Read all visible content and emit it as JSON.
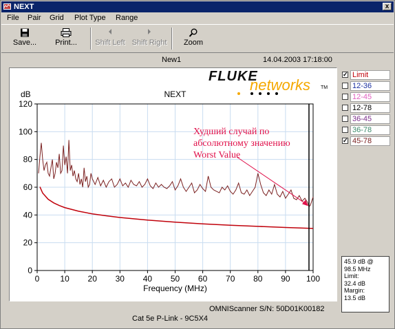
{
  "window": {
    "title": "NEXT",
    "close_label": "x"
  },
  "menu": {
    "items": [
      "File",
      "Pair",
      "Grid",
      "Plot Type",
      "Range"
    ]
  },
  "toolbar": {
    "save": "Save...",
    "print": "Print...",
    "shift_left": "Shift Left",
    "shift_right": "Shift Right",
    "zoom": "Zoom"
  },
  "header": {
    "graph_name": "New1",
    "timestamp": "14.04.2003 17:18:00"
  },
  "logo": {
    "brand": "FLUKE",
    "sub": "networks",
    "tm": "TM"
  },
  "annotation": {
    "lines": [
      "Худший случай по",
      "абсолютному значению",
      "Worst Value"
    ]
  },
  "legend": [
    {
      "label": "Limit",
      "checked": true,
      "color": "#c0000a"
    },
    {
      "label": "12-36",
      "checked": false,
      "color": "#1a2fa0"
    },
    {
      "label": "12-45",
      "checked": false,
      "color": "#e060c0"
    },
    {
      "label": "12-78",
      "checked": false,
      "color": "#000000"
    },
    {
      "label": "36-45",
      "checked": false,
      "color": "#7a2d8a"
    },
    {
      "label": "36-78",
      "checked": false,
      "color": "#3a8a6a"
    },
    {
      "label": "45-78",
      "checked": true,
      "color": "#7a2020"
    }
  ],
  "info": {
    "lines": [
      "45.9 dB @",
      "98.5 MHz",
      "Limit:",
      "32.4 dB",
      "Margin:",
      "13.5 dB"
    ]
  },
  "footer": {
    "scanner": "OMNIScanner  S/N:  50D01K00182",
    "cable": "Cat 5e P-Link - 9C5X4"
  },
  "chart_data": {
    "type": "line",
    "title": "NEXT",
    "xlabel": "Frequency (MHz)",
    "ylabel": "dB",
    "xlim": [
      0,
      100
    ],
    "ylim": [
      0,
      120
    ],
    "xticks": [
      0,
      10,
      20,
      30,
      40,
      50,
      60,
      70,
      80,
      90,
      100
    ],
    "yticks": [
      0,
      20,
      40,
      60,
      80,
      100,
      120
    ],
    "grid": true,
    "marker_x": 98.5,
    "series": [
      {
        "name": "Limit",
        "color": "#c0000a",
        "x": [
          1,
          2,
          4,
          6,
          8,
          10,
          15,
          20,
          25,
          30,
          40,
          50,
          60,
          70,
          80,
          90,
          100
        ],
        "y": [
          60.3,
          55.8,
          51.3,
          48.7,
          46.8,
          45.3,
          42.7,
          40.8,
          39.4,
          38.2,
          36.3,
          34.8,
          33.6,
          32.6,
          31.8,
          31.0,
          30.3
        ]
      },
      {
        "name": "45-78",
        "color": "#7a2020",
        "x": [
          0.5,
          1,
          1.5,
          2,
          2.5,
          3,
          3.5,
          4,
          4.5,
          5,
          5.5,
          6,
          6.5,
          7,
          7.5,
          8,
          8.5,
          9,
          9.5,
          10,
          10.5,
          11,
          11.5,
          12,
          12.5,
          13,
          13.5,
          14,
          14.5,
          15,
          15.5,
          16,
          16.5,
          17,
          17.5,
          18,
          18.5,
          19,
          19.5,
          20,
          21,
          22,
          23,
          24,
          25,
          26,
          27,
          28,
          29,
          30,
          31,
          32,
          33,
          34,
          35,
          36,
          37,
          38,
          39,
          40,
          41,
          42,
          43,
          44,
          45,
          46,
          47,
          48,
          49,
          50,
          51,
          52,
          53,
          54,
          55,
          56,
          57,
          58,
          59,
          60,
          61,
          62,
          63,
          64,
          65,
          66,
          67,
          68,
          69,
          70,
          71,
          72,
          73,
          74,
          75,
          76,
          77,
          78,
          79,
          80,
          81,
          82,
          83,
          84,
          85,
          86,
          87,
          88,
          89,
          90,
          91,
          92,
          93,
          94,
          95,
          96,
          97,
          98,
          98.5,
          99,
          99.5,
          100
        ],
        "y": [
          70,
          82,
          92,
          80,
          72,
          76,
          78,
          70,
          68,
          74,
          80,
          66,
          70,
          78,
          74,
          84,
          70,
          72,
          90,
          76,
          82,
          70,
          94,
          72,
          76,
          68,
          72,
          66,
          64,
          70,
          62,
          66,
          60,
          74,
          64,
          68,
          60,
          62,
          70,
          66,
          62,
          67,
          61,
          65,
          60,
          64,
          66,
          60,
          62,
          66,
          61,
          63,
          60,
          65,
          62,
          61,
          64,
          60,
          62,
          66,
          61,
          59,
          63,
          60,
          62,
          60,
          59,
          61,
          64,
          58,
          61,
          66,
          60,
          57,
          60,
          63,
          56,
          58,
          62,
          59,
          57,
          68,
          60,
          58,
          57,
          56,
          60,
          58,
          61,
          57,
          55,
          58,
          63,
          56,
          55,
          58,
          54,
          57,
          60,
          70,
          62,
          56,
          54,
          58,
          55,
          62,
          55,
          53,
          57,
          52,
          55,
          58,
          52,
          51,
          54,
          50,
          52,
          49,
          45.9,
          47,
          50,
          53
        ]
      }
    ]
  }
}
